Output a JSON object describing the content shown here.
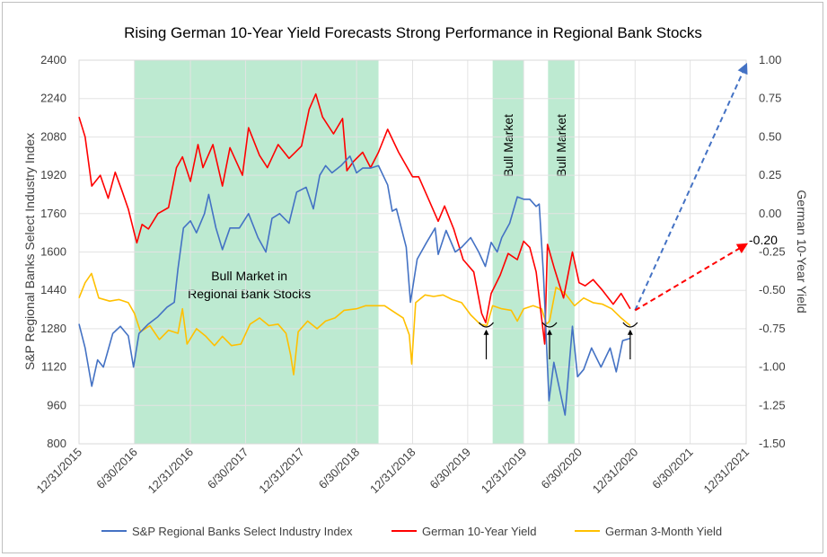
{
  "chart_data": {
    "type": "line",
    "title": "Rising German 10-Year Yield Forecasts Strong Performance in Regional Bank Stocks",
    "y_left_label": "S&P Regional Banks Select Industry Index",
    "y_right_label": "German 10-Year Yield",
    "y_left_ticks": [
      "2400",
      "2240",
      "2080",
      "1920",
      "1760",
      "1600",
      "1440",
      "1280",
      "1120",
      "960",
      "800"
    ],
    "y_left_lim": [
      800,
      2400
    ],
    "y_right_ticks": [
      "1.00",
      "0.75",
      "0.50",
      "0.25",
      "0.00",
      "-0.25",
      "-0.50",
      "-0.75",
      "-1.00",
      "-1.25",
      "-1.50"
    ],
    "y_right_lim": [
      -1.5,
      1.0
    ],
    "x_ticks": [
      "12/31/2015",
      "6/30/2016",
      "12/31/2016",
      "6/30/2017",
      "12/31/2017",
      "6/30/2018",
      "12/31/2018",
      "6/30/2019",
      "12/31/2019",
      "6/30/2020",
      "12/31/2020",
      "6/30/2021",
      "12/31/2021"
    ],
    "x_lim": [
      "12/31/2015",
      "12/31/2021"
    ],
    "legend_position": "bottom",
    "shaded_regions": [
      {
        "start": "6/30/2016",
        "end": "9/10/2018",
        "label": "Bull Market in Regional Bank Stocks"
      },
      {
        "start": "9/20/2019",
        "end": "12/31/2019",
        "label": "Bull Market"
      },
      {
        "start": "3/20/2020",
        "end": "6/15/2020",
        "label": "Bull Market"
      }
    ],
    "shade_label_main_lines": [
      "Bull Market in",
      "Regional Bank Stocks"
    ],
    "annotations": {
      "end_label": "-0.20"
    },
    "series": [
      {
        "name": "S&P Regional Banks Select Industry Index",
        "color": "#4472c4",
        "axis": "left",
        "points": [
          [
            "12/31/2015",
            1300
          ],
          [
            "1/20/2016",
            1200
          ],
          [
            "2/11/2016",
            1040
          ],
          [
            "3/1/2016",
            1150
          ],
          [
            "3/20/2016",
            1120
          ],
          [
            "4/20/2016",
            1260
          ],
          [
            "5/15/2016",
            1290
          ],
          [
            "6/10/2016",
            1250
          ],
          [
            "6/27/2016",
            1120
          ],
          [
            "7/15/2016",
            1260
          ],
          [
            "8/15/2016",
            1300
          ],
          [
            "9/15/2016",
            1330
          ],
          [
            "10/15/2016",
            1370
          ],
          [
            "11/8/2016",
            1390
          ],
          [
            "11/20/2016",
            1530
          ],
          [
            "12/8/2016",
            1700
          ],
          [
            "12/31/2016",
            1730
          ],
          [
            "1/20/2017",
            1680
          ],
          [
            "2/15/2017",
            1760
          ],
          [
            "3/1/2017",
            1840
          ],
          [
            "3/25/2017",
            1700
          ],
          [
            "4/15/2017",
            1610
          ],
          [
            "5/10/2017",
            1700
          ],
          [
            "6/10/2017",
            1700
          ],
          [
            "7/10/2017",
            1760
          ],
          [
            "8/10/2017",
            1660
          ],
          [
            "9/5/2017",
            1600
          ],
          [
            "9/25/2017",
            1740
          ],
          [
            "10/20/2017",
            1760
          ],
          [
            "11/20/2017",
            1720
          ],
          [
            "12/15/2017",
            1850
          ],
          [
            "1/15/2018",
            1870
          ],
          [
            "2/8/2018",
            1780
          ],
          [
            "3/1/2018",
            1920
          ],
          [
            "3/20/2018",
            1960
          ],
          [
            "4/10/2018",
            1930
          ],
          [
            "5/10/2018",
            1960
          ],
          [
            "6/8/2018",
            2000
          ],
          [
            "6/30/2018",
            1930
          ],
          [
            "7/20/2018",
            1950
          ],
          [
            "8/15/2018",
            1950
          ],
          [
            "9/10/2018",
            1960
          ],
          [
            "10/10/2018",
            1880
          ],
          [
            "10/25/2018",
            1770
          ],
          [
            "11/8/2018",
            1780
          ],
          [
            "12/10/2018",
            1620
          ],
          [
            "12/24/2018",
            1390
          ],
          [
            "1/15/2019",
            1570
          ],
          [
            "2/15/2019",
            1640
          ],
          [
            "3/15/2019",
            1700
          ],
          [
            "3/25/2019",
            1590
          ],
          [
            "4/20/2019",
            1690
          ],
          [
            "5/20/2019",
            1600
          ],
          [
            "6/10/2019",
            1620
          ],
          [
            "7/10/2019",
            1660
          ],
          [
            "8/5/2019",
            1600
          ],
          [
            "8/27/2019",
            1540
          ],
          [
            "9/15/2019",
            1640
          ],
          [
            "10/5/2019",
            1600
          ],
          [
            "10/20/2019",
            1660
          ],
          [
            "11/15/2019",
            1720
          ],
          [
            "12/10/2019",
            1830
          ],
          [
            "12/31/2019",
            1820
          ],
          [
            "1/20/2020",
            1820
          ],
          [
            "2/10/2020",
            1790
          ],
          [
            "2/20/2020",
            1800
          ],
          [
            "3/5/2020",
            1500
          ],
          [
            "3/23/2020",
            980
          ],
          [
            "4/8/2020",
            1140
          ],
          [
            "5/15/2020",
            920
          ],
          [
            "6/8/2020",
            1290
          ],
          [
            "6/25/2020",
            1080
          ],
          [
            "7/15/2020",
            1110
          ],
          [
            "8/10/2020",
            1200
          ],
          [
            "9/10/2020",
            1120
          ],
          [
            "10/10/2020",
            1200
          ],
          [
            "10/30/2020",
            1100
          ],
          [
            "11/20/2020",
            1230
          ],
          [
            "12/15/2020",
            1240
          ]
        ]
      },
      {
        "name": "German 10-Year Yield",
        "color": "#ff0000",
        "axis": "right",
        "points": [
          [
            "12/31/2015",
            0.63
          ],
          [
            "1/20/2016",
            0.5
          ],
          [
            "2/11/2016",
            0.18
          ],
          [
            "3/10/2016",
            0.25
          ],
          [
            "4/5/2016",
            0.1
          ],
          [
            "4/28/2016",
            0.27
          ],
          [
            "5/20/2016",
            0.15
          ],
          [
            "6/10/2016",
            0.03
          ],
          [
            "6/30/2016",
            -0.13
          ],
          [
            "7/8/2016",
            -0.19
          ],
          [
            "7/25/2016",
            -0.07
          ],
          [
            "8/15/2016",
            -0.1
          ],
          [
            "9/15/2016",
            0.0
          ],
          [
            "10/20/2016",
            0.04
          ],
          [
            "11/15/2016",
            0.3
          ],
          [
            "12/5/2016",
            0.37
          ],
          [
            "12/31/2016",
            0.21
          ],
          [
            "1/25/2017",
            0.45
          ],
          [
            "2/10/2017",
            0.3
          ],
          [
            "3/15/2017",
            0.45
          ],
          [
            "4/15/2017",
            0.18
          ],
          [
            "5/10/2017",
            0.43
          ],
          [
            "6/20/2017",
            0.25
          ],
          [
            "7/10/2017",
            0.56
          ],
          [
            "8/15/2017",
            0.38
          ],
          [
            "9/10/2017",
            0.3
          ],
          [
            "10/15/2017",
            0.45
          ],
          [
            "11/20/2017",
            0.36
          ],
          [
            "12/31/2017",
            0.44
          ],
          [
            "1/25/2018",
            0.68
          ],
          [
            "2/16/2018",
            0.78
          ],
          [
            "3/10/2018",
            0.63
          ],
          [
            "4/15/2018",
            0.52
          ],
          [
            "5/15/2018",
            0.62
          ],
          [
            "5/29/2018",
            0.28
          ],
          [
            "6/20/2018",
            0.34
          ],
          [
            "7/20/2018",
            0.4
          ],
          [
            "8/15/2018",
            0.3
          ],
          [
            "9/10/2018",
            0.4
          ],
          [
            "10/10/2018",
            0.55
          ],
          [
            "11/15/2018",
            0.4
          ],
          [
            "12/31/2018",
            0.24
          ],
          [
            "1/20/2019",
            0.24
          ],
          [
            "2/20/2019",
            0.1
          ],
          [
            "3/25/2019",
            -0.05
          ],
          [
            "4/15/2019",
            0.05
          ],
          [
            "5/15/2019",
            -0.1
          ],
          [
            "6/15/2019",
            -0.3
          ],
          [
            "7/20/2019",
            -0.38
          ],
          [
            "8/15/2019",
            -0.65
          ],
          [
            "8/28/2019",
            -0.71
          ],
          [
            "9/15/2019",
            -0.52
          ],
          [
            "10/15/2019",
            -0.4
          ],
          [
            "11/10/2019",
            -0.26
          ],
          [
            "12/10/2019",
            -0.3
          ],
          [
            "12/31/2019",
            -0.18
          ],
          [
            "1/20/2020",
            -0.22
          ],
          [
            "2/10/2020",
            -0.38
          ],
          [
            "3/9/2020",
            -0.85
          ],
          [
            "3/18/2020",
            -0.2
          ],
          [
            "4/10/2020",
            -0.36
          ],
          [
            "5/10/2020",
            -0.55
          ],
          [
            "6/8/2020",
            -0.25
          ],
          [
            "6/30/2020",
            -0.45
          ],
          [
            "7/20/2020",
            -0.47
          ],
          [
            "8/15/2020",
            -0.43
          ],
          [
            "9/15/2020",
            -0.5
          ],
          [
            "10/20/2020",
            -0.59
          ],
          [
            "11/15/2020",
            -0.52
          ],
          [
            "12/15/2020",
            -0.62
          ]
        ]
      },
      {
        "name": "German 3-Month Yield",
        "color": "#ffc000",
        "axis": "right",
        "points": [
          [
            "12/31/2015",
            -0.55
          ],
          [
            "1/20/2016",
            -0.45
          ],
          [
            "2/10/2016",
            -0.39
          ],
          [
            "3/5/2016",
            -0.55
          ],
          [
            "4/10/2016",
            -0.57
          ],
          [
            "5/10/2016",
            -0.56
          ],
          [
            "6/10/2016",
            -0.58
          ],
          [
            "6/30/2016",
            -0.65
          ],
          [
            "7/20/2016",
            -0.77
          ],
          [
            "8/20/2016",
            -0.73
          ],
          [
            "9/20/2016",
            -0.82
          ],
          [
            "10/20/2016",
            -0.76
          ],
          [
            "11/20/2016",
            -0.78
          ],
          [
            "12/5/2016",
            -0.62
          ],
          [
            "12/20/2016",
            -0.85
          ],
          [
            "1/20/2017",
            -0.75
          ],
          [
            "2/20/2017",
            -0.8
          ],
          [
            "3/20/2017",
            -0.86
          ],
          [
            "4/15/2017",
            -0.8
          ],
          [
            "5/15/2017",
            -0.86
          ],
          [
            "6/15/2017",
            -0.85
          ],
          [
            "7/15/2017",
            -0.72
          ],
          [
            "8/15/2017",
            -0.68
          ],
          [
            "9/15/2017",
            -0.73
          ],
          [
            "10/15/2017",
            -0.72
          ],
          [
            "11/10/2017",
            -0.78
          ],
          [
            "11/25/2017",
            -0.92
          ],
          [
            "12/5/2017",
            -1.05
          ],
          [
            "12/20/2017",
            -0.77
          ],
          [
            "1/20/2018",
            -0.7
          ],
          [
            "2/20/2018",
            -0.75
          ],
          [
            "3/20/2018",
            -0.7
          ],
          [
            "4/20/2018",
            -0.68
          ],
          [
            "5/20/2018",
            -0.63
          ],
          [
            "6/30/2018",
            -0.62
          ],
          [
            "7/30/2018",
            -0.6
          ],
          [
            "8/30/2018",
            -0.6
          ],
          [
            "9/30/2018",
            -0.6
          ],
          [
            "10/30/2018",
            -0.64
          ],
          [
            "11/30/2018",
            -0.68
          ],
          [
            "12/20/2018",
            -0.79
          ],
          [
            "12/28/2018",
            -0.98
          ],
          [
            "1/10/2019",
            -0.58
          ],
          [
            "2/10/2019",
            -0.53
          ],
          [
            "3/10/2019",
            -0.54
          ],
          [
            "4/10/2019",
            -0.53
          ],
          [
            "5/10/2019",
            -0.56
          ],
          [
            "6/10/2019",
            -0.58
          ],
          [
            "7/10/2019",
            -0.66
          ],
          [
            "8/10/2019",
            -0.72
          ],
          [
            "9/1/2019",
            -0.73
          ],
          [
            "9/20/2019",
            -0.6
          ],
          [
            "10/20/2019",
            -0.62
          ],
          [
            "11/20/2019",
            -0.63
          ],
          [
            "12/10/2019",
            -0.7
          ],
          [
            "12/31/2019",
            -0.62
          ],
          [
            "1/31/2020",
            -0.6
          ],
          [
            "2/28/2020",
            -0.62
          ],
          [
            "3/15/2020",
            -0.72
          ],
          [
            "3/25/2020",
            -0.7
          ],
          [
            "4/15/2020",
            -0.48
          ],
          [
            "5/15/2020",
            -0.52
          ],
          [
            "6/15/2020",
            -0.6
          ],
          [
            "7/15/2020",
            -0.55
          ],
          [
            "8/15/2020",
            -0.58
          ],
          [
            "9/15/2020",
            -0.59
          ],
          [
            "10/15/2020",
            -0.62
          ],
          [
            "11/15/2020",
            -0.68
          ],
          [
            "12/15/2020",
            -0.73
          ]
        ]
      },
      {
        "name": "Projection (index)",
        "color": "#4472c4",
        "axis": "right",
        "dashed": true,
        "points": [
          [
            "12/31/2020",
            -0.63
          ],
          [
            "12/31/2021",
            0.97
          ]
        ]
      },
      {
        "name": "Projection (10-year yield)",
        "color": "#ff0000",
        "axis": "right",
        "dashed": true,
        "points": [
          [
            "12/31/2020",
            -0.63
          ],
          [
            "12/31/2021",
            -0.2
          ]
        ]
      }
    ],
    "markers": [
      {
        "label": "up-arrow",
        "date": "8/30/2019"
      },
      {
        "label": "up-arrow",
        "date": "3/25/2020"
      },
      {
        "label": "up-arrow",
        "date": "12/15/2020"
      }
    ]
  }
}
